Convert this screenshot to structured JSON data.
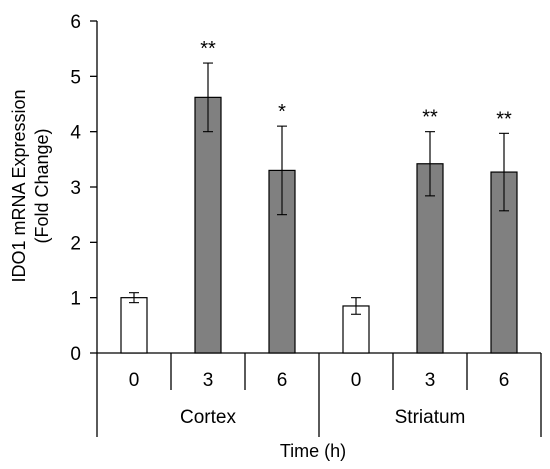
{
  "chart_data": {
    "type": "bar",
    "title": "",
    "ylabel_line1": "IDO1 mRNA Expression",
    "ylabel_line2": "(Fold Change)",
    "xlabel": "Time  (h)",
    "ylim": [
      0,
      6
    ],
    "yticks": [
      "0",
      "1",
      "2",
      "3",
      "4",
      "5",
      "6"
    ],
    "groups": [
      "Cortex",
      "Striatum"
    ],
    "categories": [
      "0",
      "3",
      "6",
      "0",
      "3",
      "6"
    ],
    "bar_group": [
      0,
      0,
      0,
      1,
      1,
      1
    ],
    "values": [
      1.0,
      4.62,
      3.3,
      0.85,
      3.42,
      3.27
    ],
    "errors": [
      0.09,
      0.62,
      0.8,
      0.15,
      0.58,
      0.7
    ],
    "fill": [
      "white",
      "gray",
      "gray",
      "white",
      "gray",
      "gray"
    ],
    "significance": [
      "",
      "**",
      "*",
      "",
      "**",
      "**"
    ],
    "grid": false
  },
  "colors": {
    "bar_gray": "#808080",
    "bar_white": "#ffffff",
    "stroke": "#000000"
  }
}
